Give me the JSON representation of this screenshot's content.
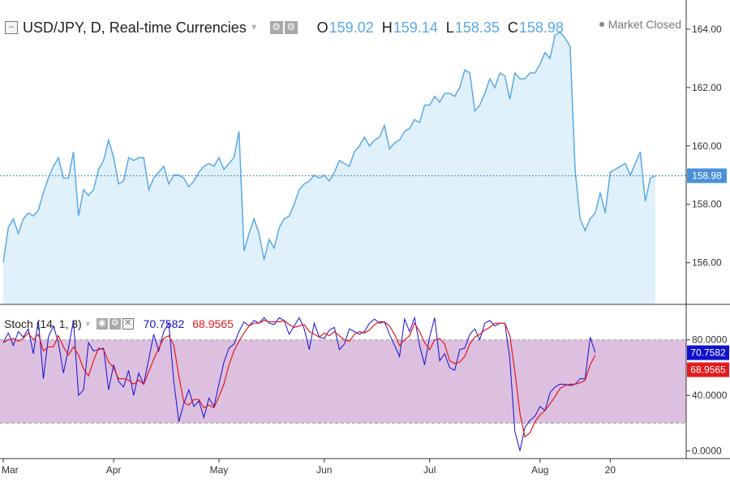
{
  "header": {
    "symbol_title": "USD/JPY, D, Real-time Currencies",
    "icons": [
      "collapse-icon",
      "settings-icon",
      "gear-icon"
    ],
    "ohlc": [
      {
        "key": "O",
        "value": "159.02"
      },
      {
        "key": "H",
        "value": "159.14"
      },
      {
        "key": "L",
        "value": "158.35"
      },
      {
        "key": "C",
        "value": "158.98"
      }
    ],
    "market_status": "Market Closed"
  },
  "stoch_header": {
    "title": "Stoch (14, 1, 3)",
    "k_value": "70.7582",
    "d_value": "68.9565"
  },
  "colors": {
    "price_line": "#5aa9e6",
    "price_fill": "#e1f1fb",
    "stoch_k": "#1010d0",
    "stoch_d": "#e41a1c",
    "stoch_band": "#ddbfe0",
    "axis_text": "#333333",
    "last_price_label": "#4a90d9"
  },
  "chart_data": [
    {
      "type": "area",
      "title": "USD/JPY, D, Real-time Currencies",
      "y_ticks": [
        "164.00",
        "162.00",
        "160.00",
        "158.00",
        "156.00"
      ],
      "ylim": [
        154.6,
        165.0
      ],
      "last_price_label": "158.98",
      "last_value": 158.98,
      "grid": false,
      "values": [
        156.0,
        157.2,
        157.5,
        157.0,
        157.5,
        157.7,
        157.6,
        157.8,
        158.4,
        158.9,
        159.3,
        159.6,
        158.9,
        158.9,
        159.8,
        157.6,
        158.5,
        158.3,
        158.5,
        159.2,
        159.5,
        160.2,
        159.6,
        158.7,
        158.8,
        159.6,
        159.5,
        159.6,
        159.6,
        158.5,
        158.9,
        159.1,
        159.3,
        158.7,
        159.0,
        159.0,
        158.9,
        158.6,
        158.8,
        159.1,
        159.3,
        159.4,
        159.3,
        159.6,
        159.2,
        159.4,
        159.6,
        160.5,
        156.4,
        157.0,
        157.5,
        157.0,
        156.1,
        156.8,
        156.5,
        157.2,
        157.5,
        157.6,
        158.0,
        158.5,
        158.7,
        158.8,
        159.0,
        158.9,
        159.0,
        158.8,
        159.1,
        159.5,
        159.4,
        159.3,
        159.8,
        160.0,
        160.3,
        160.0,
        160.2,
        160.3,
        160.7,
        159.9,
        160.1,
        160.2,
        160.5,
        160.6,
        160.9,
        160.8,
        161.4,
        161.4,
        161.7,
        161.5,
        161.8,
        161.8,
        161.7,
        162.0,
        162.6,
        162.5,
        161.2,
        161.4,
        161.8,
        162.3,
        162.0,
        162.5,
        162.4,
        161.6,
        162.5,
        162.3,
        162.3,
        162.5,
        162.5,
        162.8,
        163.2,
        163.0,
        163.8,
        163.9,
        163.7,
        163.4,
        159.2,
        157.5,
        157.1,
        157.5,
        157.7,
        158.4,
        157.7,
        159.1,
        159.2,
        159.3,
        159.4,
        159.0,
        159.4,
        159.8,
        158.1,
        158.9,
        158.98
      ],
      "x_ticks": [
        {
          "label": "Mar",
          "index": 0
        },
        {
          "label": "Apr",
          "index": 22
        },
        {
          "label": "May",
          "index": 43
        },
        {
          "label": "Jun",
          "index": 64
        },
        {
          "label": "Jul",
          "index": 85
        },
        {
          "label": "Aug",
          "index": 107
        },
        {
          "label": "20",
          "index": 121
        }
      ]
    },
    {
      "type": "line",
      "title": "Stoch (14, 1, 3)",
      "y_ticks": [
        "80.0000",
        "40.0000",
        "0.0000"
      ],
      "ylim": [
        -5,
        105
      ],
      "bands": [
        80,
        20
      ],
      "last_labels": {
        "k": "70.7582",
        "d": "68.9565"
      },
      "grid": false,
      "series": [
        {
          "name": "%K",
          "values": [
            78,
            85,
            76,
            86,
            82,
            88,
            70,
            94,
            52,
            82,
            90,
            78,
            56,
            74,
            94,
            40,
            44,
            78,
            72,
            73,
            74,
            44,
            62,
            50,
            46,
            58,
            40,
            56,
            48,
            66,
            84,
            72,
            86,
            92,
            50,
            21,
            34,
            44,
            32,
            36,
            24,
            38,
            32,
            48,
            64,
            74,
            77,
            86,
            93,
            90,
            94,
            92,
            96,
            92,
            91,
            96,
            94,
            84,
            90,
            96,
            88,
            73,
            92,
            82,
            81,
            87,
            89,
            73,
            77,
            88,
            86,
            84,
            86,
            92,
            95,
            92,
            93,
            84,
            76,
            68,
            95,
            86,
            96,
            76,
            62,
            82,
            96,
            65,
            70,
            60,
            58,
            73,
            74,
            84,
            88,
            80,
            92,
            94,
            90,
            92,
            92,
            66,
            14,
            0,
            17,
            22,
            25,
            32,
            29,
            42,
            46,
            48,
            48,
            47,
            48,
            52,
            52,
            82,
            70.7582
          ]
        },
        {
          "name": "%D",
          "values": [
            78,
            80,
            81,
            79,
            81,
            85,
            80,
            84,
            72,
            75,
            75,
            83,
            75,
            69,
            75,
            69,
            59,
            54,
            65,
            74,
            73,
            64,
            60,
            52,
            52,
            51,
            48,
            51,
            48,
            57,
            66,
            74,
            81,
            83,
            76,
            54,
            35,
            33,
            37,
            37,
            31,
            33,
            31,
            39,
            48,
            62,
            72,
            79,
            85,
            90,
            92,
            92,
            94,
            93,
            93,
            93,
            94,
            91,
            89,
            90,
            91,
            86,
            84,
            82,
            85,
            83,
            86,
            83,
            80,
            79,
            84,
            86,
            85,
            87,
            91,
            93,
            93,
            90,
            84,
            76,
            80,
            83,
            92,
            86,
            78,
            73,
            80,
            81,
            77,
            65,
            63,
            64,
            68,
            77,
            82,
            84,
            87,
            89,
            92,
            92,
            92,
            83,
            57,
            27,
            10,
            13,
            21,
            26,
            29,
            34,
            39,
            45,
            47,
            48,
            48,
            49,
            51,
            62,
            68.9565
          ]
        }
      ]
    }
  ]
}
